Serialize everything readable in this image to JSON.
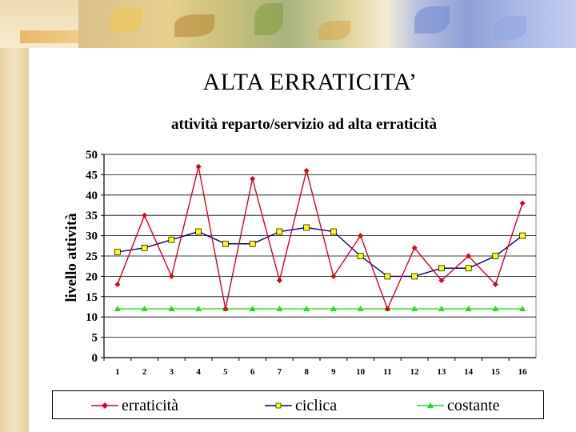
{
  "slide": {
    "title": "ALTA ERRATICITA’"
  },
  "chart_data": {
    "type": "line",
    "title": "attività reparto/servizio ad alta erraticità",
    "xlabel": "",
    "ylabel": "livello attività",
    "categories": [
      "1",
      "2",
      "3",
      "4",
      "5",
      "6",
      "7",
      "8",
      "9",
      "10",
      "11",
      "12",
      "13",
      "14",
      "15",
      "16"
    ],
    "yticks": [
      "0",
      "5",
      "10",
      "15",
      "20",
      "25",
      "30",
      "35",
      "40",
      "45",
      "50"
    ],
    "ylim": [
      0,
      50
    ],
    "grid": true,
    "legend": "bottom",
    "series": [
      {
        "name": "erraticità",
        "color": "#e0001b",
        "marker": "diamond",
        "values": [
          18,
          35,
          20,
          47,
          12,
          44,
          19,
          46,
          20,
          30,
          12,
          27,
          19,
          25,
          18,
          38
        ]
      },
      {
        "name": "ciclica",
        "color": "#00008b",
        "marker": "square",
        "marker_color": "#ffff00",
        "values": [
          26,
          27,
          29,
          31,
          28,
          28,
          31,
          32,
          31,
          25,
          20,
          20,
          22,
          22,
          25,
          30
        ]
      },
      {
        "name": "costante",
        "color": "#22dd22",
        "marker": "triangle",
        "values": [
          12,
          12,
          12,
          12,
          12,
          12,
          12,
          12,
          12,
          12,
          12,
          12,
          12,
          12,
          12,
          12
        ]
      }
    ]
  }
}
